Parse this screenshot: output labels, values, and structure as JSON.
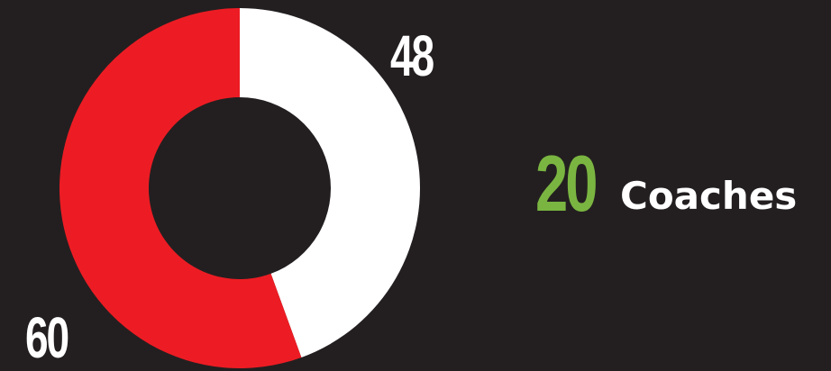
{
  "colors": {
    "background": "#231f20",
    "slice_white": "#ffffff",
    "slice_red": "#ed1c24",
    "label_text": "#ffffff",
    "stat_number": "#7ab541",
    "stat_label": "#ffffff"
  },
  "chart_data": {
    "type": "pie",
    "style": "donut",
    "title": "",
    "slices": [
      {
        "label": "",
        "value": 48,
        "color": "#ffffff",
        "value_label": "48"
      },
      {
        "label": "",
        "value": 60,
        "color": "#ed1c24",
        "value_label": "60"
      }
    ],
    "legend": "none"
  },
  "stat": {
    "number": "20",
    "label": "Coaches"
  }
}
